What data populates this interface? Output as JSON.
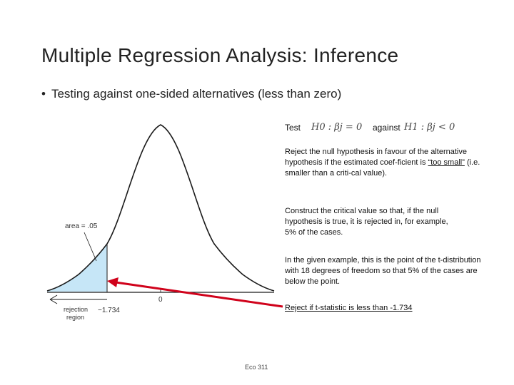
{
  "title": "Multiple Regression Analysis: Inference",
  "bullet": "Testing against one-sided alternatives (less than zero)",
  "hypothesis": {
    "test_label": "Test",
    "h0": "H0 : βj = 0",
    "against_label": "against",
    "h1": "H1 : βj < 0"
  },
  "paragraphs": {
    "reject": {
      "part1": "Reject the null hypothesis in favour of the alternative hypothesis if the estimated coef-ficient is ",
      "emph": "“too small”",
      "part2": " (i.e. smaller than a criti-cal value)."
    },
    "construct": "Construct the critical value so that, if the null hypothesis is true, it is rejected in, for example, 5% of the cases.",
    "example": "In the given example, this is the point of the t-distribution with 18 degrees of freedom so that 5% of the cases are below the point.",
    "reject_rule": "Reject if t-statistic is less than -1.734"
  },
  "figure": {
    "area_label": "area = .05",
    "zero_label": "0",
    "critical_label": "−1.734",
    "rejection_label_line1": "rejection",
    "rejection_label_line2": "region",
    "curve_color": "#1a1a1a",
    "shade_color": "#c6e6f7",
    "arrow_color": "#d0021b"
  },
  "footer": "Eco 311"
}
